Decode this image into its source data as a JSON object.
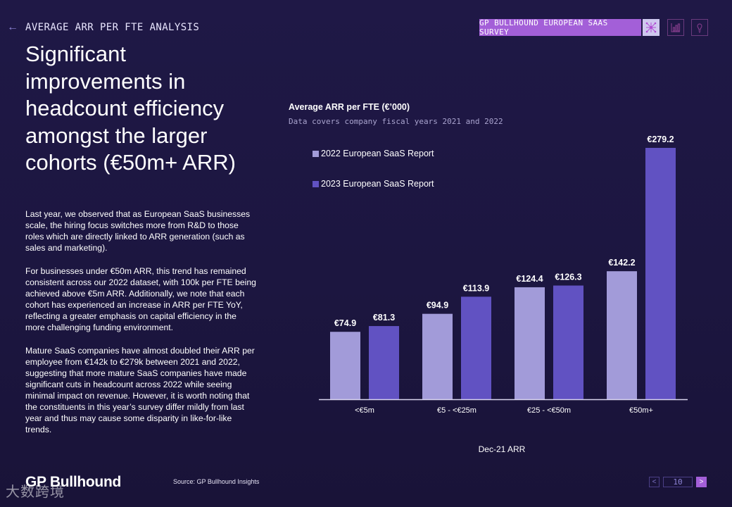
{
  "header": {
    "back_icon": "arrow-left-icon",
    "section_title": "AVERAGE ARR PER FTE ANALYSIS",
    "badge_label": "GP BULLHOUND EUROPEAN SAAS SURVEY",
    "tool_icons": [
      "network-icon",
      "bar-chart-icon",
      "lightbulb-icon"
    ]
  },
  "headline": "Significant improvements in headcount efficiency amongst the larger cohorts (€50m+ ARR)",
  "body": {
    "p1": "Last year, we observed that as European SaaS businesses scale, the hiring focus switches more from R&D to those roles which are directly linked to ARR generation (such as sales and marketing).",
    "p2": "For businesses under €50m ARR, this trend has remained consistent across our 2022 dataset, with 100k per FTE being achieved above €5m ARR. Additionally, we note that each cohort has experienced an increase in ARR per FTE YoY, reflecting a greater emphasis on capital efficiency in the more challenging funding environment.",
    "p3": "Mature SaaS companies have almost doubled their ARR per employee from €142k to €279k between 2021 and 2022, suggesting that more mature SaaS companies have made significant cuts in headcount across 2022 while seeing minimal impact on revenue. However, it is worth noting that the constituents in this year’s survey differ mildly from last year and thus may cause some disparity in like-for-like trends."
  },
  "footer": {
    "logo": "GP Bullhound",
    "source": "Source: GP Bullhound Insights",
    "watermark": "大数跨境",
    "page_number": "10",
    "prev_icon": "chevron-left-icon",
    "next_icon": "chevron-right-icon"
  },
  "colors": {
    "background": "#1d1742",
    "accent": "#a35fd8",
    "series_2022": "#a29bd9",
    "series_2023": "#6152c2",
    "axis": "#d8d4ee"
  },
  "chart_data": {
    "type": "bar",
    "title": "Average ARR per FTE (€’000)",
    "subtitle": "Data covers company fiscal years 2021 and 2022",
    "categories": [
      "<€5m",
      "€5 - <€25m",
      "€25 - <€50m",
      "€50m+"
    ],
    "series": [
      {
        "name": "2022 European SaaS Report",
        "values": [
          74.9,
          94.9,
          124.4,
          142.2
        ],
        "labels": [
          "€74.9",
          "€94.9",
          "€124.4",
          "€142.2"
        ]
      },
      {
        "name": "2023 European SaaS Report",
        "values": [
          81.3,
          113.9,
          126.3,
          279.2
        ],
        "labels": [
          "€81.3",
          "€113.9",
          "€126.3",
          "€279.2"
        ]
      }
    ],
    "xlabel": "Dec-21 ARR",
    "ylabel": "",
    "ylim": [
      0,
      279.2
    ],
    "grid": false,
    "legend_position": "top-left"
  }
}
